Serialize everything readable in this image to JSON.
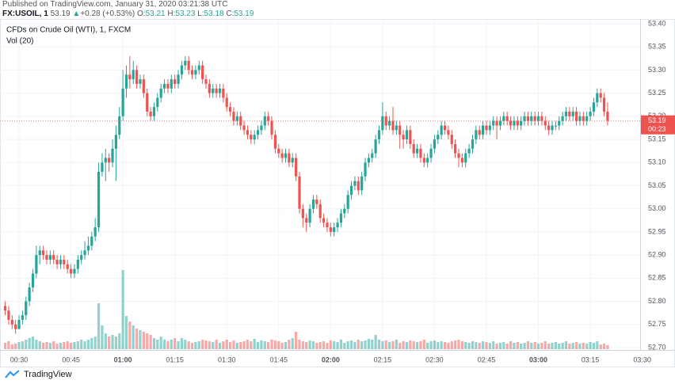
{
  "header": {
    "published": "Published on TradingView.com, January 31, 2020 03:21:38 UTC",
    "symbol": "FX:USOIL, 1",
    "last": 53.19,
    "arrow": "▲",
    "change": "+0.28 (+0.53%)",
    "o_label": "O:",
    "o": 53.21,
    "h_label": "H:",
    "h": 53.23,
    "l_label": "L:",
    "l": 53.18,
    "c_label": "C:",
    "c": 53.19
  },
  "footer": "TradingView",
  "chart_data": {
    "type": "candlestick",
    "title": "CFDs on Crude Oil (WTI), 1, FXCM",
    "volume_title": "Vol (20)",
    "countdown": "00:23",
    "up_color": "#26a69a",
    "down_color": "#ef5350",
    "grid": true,
    "xlim": [
      24.5,
      209.4
    ],
    "xticks": [
      {
        "value": 30,
        "label": "00:30"
      },
      {
        "value": 45,
        "label": "00:45"
      },
      {
        "value": 60,
        "label": "01:00"
      },
      {
        "value": 75,
        "label": "01:15"
      },
      {
        "value": 90,
        "label": "01:30"
      },
      {
        "value": 105,
        "label": "01:45"
      },
      {
        "value": 120,
        "label": "02:00"
      },
      {
        "value": 135,
        "label": "02:15"
      },
      {
        "value": 150,
        "label": "02:30"
      },
      {
        "value": 165,
        "label": "02:45"
      },
      {
        "value": 180,
        "label": "03:00"
      },
      {
        "value": 195,
        "label": "03:15"
      },
      {
        "value": 210,
        "label": "03:30"
      }
    ],
    "ylim": [
      52.7,
      53.4
    ],
    "yticks": [
      {
        "value": 52.7,
        "label": "52.70"
      },
      52.75,
      {
        "value": 52.8,
        "label": "52.80"
      },
      52.85,
      {
        "value": 52.9,
        "label": "52.90"
      },
      52.95,
      {
        "value": 53,
        "label": "53.00"
      },
      53.05,
      {
        "value": 53.1,
        "label": "53.10"
      },
      53.15,
      {
        "value": 53.2,
        "label": "53.20"
      },
      53.25,
      {
        "value": 53.3,
        "label": "53.30"
      },
      53.35,
      {
        "value": 53.4,
        "label": "53.40"
      }
    ],
    "x": [
      26,
      27,
      28,
      29,
      30,
      31,
      32,
      33,
      34,
      35,
      36,
      37,
      38,
      39,
      40,
      41,
      42,
      43,
      44,
      45,
      46,
      47,
      48,
      49,
      50,
      51,
      52,
      53,
      54,
      55,
      56,
      57,
      58,
      59,
      60,
      61,
      62,
      63,
      64,
      65,
      66,
      67,
      68,
      69,
      70,
      71,
      72,
      73,
      74,
      75,
      76,
      77,
      78,
      79,
      80,
      81,
      82,
      83,
      84,
      85,
      86,
      87,
      88,
      89,
      90,
      91,
      92,
      93,
      94,
      95,
      96,
      97,
      98,
      99,
      100,
      101,
      102,
      103,
      104,
      105,
      106,
      107,
      108,
      109,
      110,
      111,
      112,
      113,
      114,
      115,
      116,
      117,
      118,
      119,
      120,
      121,
      122,
      123,
      124,
      125,
      126,
      127,
      128,
      129,
      130,
      131,
      132,
      133,
      134,
      135,
      136,
      137,
      138,
      139,
      140,
      141,
      142,
      143,
      144,
      145,
      146,
      147,
      148,
      149,
      150,
      151,
      152,
      153,
      154,
      155,
      156,
      157,
      158,
      159,
      160,
      161,
      162,
      163,
      164,
      165,
      166,
      167,
      168,
      169,
      170,
      171,
      172,
      173,
      174,
      175,
      176,
      177,
      178,
      179,
      180,
      181,
      182,
      183,
      184,
      185,
      186,
      187,
      188,
      189,
      190,
      191,
      192,
      193,
      194,
      195,
      196,
      197,
      198,
      199,
      200
    ],
    "ohlc": [
      [
        52.79,
        52.8,
        52.77,
        52.78
      ],
      [
        52.78,
        52.79,
        52.75,
        52.76
      ],
      [
        52.76,
        52.77,
        52.74,
        52.75
      ],
      [
        52.75,
        52.76,
        52.73,
        52.74
      ],
      [
        52.74,
        52.77,
        52.74,
        52.76
      ],
      [
        52.76,
        52.78,
        52.75,
        52.77
      ],
      [
        52.77,
        52.81,
        52.76,
        52.8
      ],
      [
        52.8,
        52.84,
        52.79,
        52.83
      ],
      [
        52.83,
        52.87,
        52.82,
        52.86
      ],
      [
        52.86,
        52.92,
        52.85,
        52.9
      ],
      [
        52.9,
        52.92,
        52.88,
        52.91
      ],
      [
        52.91,
        52.92,
        52.89,
        52.9
      ],
      [
        52.9,
        52.91,
        52.88,
        52.89
      ],
      [
        52.89,
        52.91,
        52.88,
        52.9
      ],
      [
        52.9,
        52.91,
        52.88,
        52.89
      ],
      [
        52.89,
        52.9,
        52.87,
        52.88
      ],
      [
        52.88,
        52.9,
        52.87,
        52.89
      ],
      [
        52.89,
        52.9,
        52.87,
        52.88
      ],
      [
        52.88,
        52.89,
        52.86,
        52.87
      ],
      [
        52.87,
        52.88,
        52.85,
        52.86
      ],
      [
        52.86,
        52.88,
        52.85,
        52.87
      ],
      [
        52.87,
        52.9,
        52.86,
        52.89
      ],
      [
        52.89,
        52.91,
        52.88,
        52.9
      ],
      [
        52.9,
        52.93,
        52.89,
        52.91
      ],
      [
        52.91,
        52.94,
        52.9,
        52.92
      ],
      [
        52.92,
        52.95,
        52.91,
        52.94
      ],
      [
        52.94,
        52.98,
        52.93,
        52.96
      ],
      [
        52.96,
        53.1,
        52.95,
        53.08
      ],
      [
        53.08,
        53.12,
        53.07,
        53.1
      ],
      [
        53.1,
        53.13,
        53.06,
        53.11
      ],
      [
        53.11,
        53.12,
        53.08,
        53.1
      ],
      [
        53.1,
        53.15,
        53.09,
        53.13
      ],
      [
        53.13,
        53.18,
        53.06,
        53.16
      ],
      [
        53.16,
        53.22,
        53.15,
        53.2
      ],
      [
        53.2,
        53.3,
        53.19,
        53.26
      ],
      [
        53.26,
        53.31,
        53.24,
        53.29
      ],
      [
        53.29,
        53.33,
        53.26,
        53.28
      ],
      [
        53.28,
        53.32,
        53.27,
        53.3
      ],
      [
        53.3,
        53.31,
        53.26,
        53.27
      ],
      [
        53.27,
        53.29,
        53.26,
        53.28
      ],
      [
        53.28,
        53.29,
        53.24,
        53.25
      ],
      [
        53.25,
        53.26,
        53.2,
        53.21
      ],
      [
        53.21,
        53.22,
        53.19,
        53.2
      ],
      [
        53.2,
        53.23,
        53.19,
        53.22
      ],
      [
        53.22,
        53.25,
        53.21,
        53.24
      ],
      [
        53.24,
        53.27,
        53.23,
        53.26
      ],
      [
        53.26,
        53.28,
        53.25,
        53.27
      ],
      [
        53.27,
        53.28,
        53.25,
        53.26
      ],
      [
        53.26,
        53.29,
        53.25,
        53.28
      ],
      [
        53.28,
        53.29,
        53.26,
        53.27
      ],
      [
        53.27,
        53.3,
        53.26,
        53.29
      ],
      [
        53.29,
        53.32,
        53.28,
        53.31
      ],
      [
        53.31,
        53.33,
        53.3,
        53.32
      ],
      [
        53.32,
        53.33,
        53.29,
        53.3
      ],
      [
        53.3,
        53.31,
        53.28,
        53.29
      ],
      [
        53.29,
        53.31,
        53.28,
        53.3
      ],
      [
        53.3,
        53.32,
        53.29,
        53.31
      ],
      [
        53.31,
        53.32,
        53.27,
        53.28
      ],
      [
        53.28,
        53.29,
        53.26,
        53.27
      ],
      [
        53.27,
        53.28,
        53.24,
        53.25
      ],
      [
        53.25,
        53.27,
        53.24,
        53.26
      ],
      [
        53.26,
        53.27,
        53.24,
        53.25
      ],
      [
        53.25,
        53.27,
        53.24,
        53.26
      ],
      [
        53.26,
        53.27,
        53.23,
        53.24
      ],
      [
        53.24,
        53.25,
        53.21,
        53.22
      ],
      [
        53.22,
        53.23,
        53.2,
        53.21
      ],
      [
        53.21,
        53.22,
        53.18,
        53.19
      ],
      [
        53.19,
        53.21,
        53.18,
        53.2
      ],
      [
        53.2,
        53.21,
        53.17,
        53.18
      ],
      [
        53.18,
        53.19,
        53.16,
        53.17
      ],
      [
        53.17,
        53.18,
        53.15,
        53.16
      ],
      [
        53.16,
        53.17,
        53.14,
        53.15
      ],
      [
        53.15,
        53.17,
        53.14,
        53.16
      ],
      [
        53.16,
        53.18,
        53.15,
        53.17
      ],
      [
        53.17,
        53.19,
        53.16,
        53.18
      ],
      [
        53.18,
        53.21,
        53.17,
        53.2
      ],
      [
        53.2,
        53.21,
        53.18,
        53.19
      ],
      [
        53.19,
        53.2,
        53.15,
        53.16
      ],
      [
        53.16,
        53.17,
        53.12,
        53.13
      ],
      [
        53.13,
        53.14,
        53.11,
        53.12
      ],
      [
        53.12,
        53.13,
        53.1,
        53.11
      ],
      [
        53.11,
        53.13,
        53.1,
        53.12
      ],
      [
        53.12,
        53.13,
        53.09,
        53.1
      ],
      [
        53.1,
        53.12,
        53.09,
        53.11
      ],
      [
        53.11,
        53.12,
        53.06,
        53.07
      ],
      [
        53.07,
        53.08,
        52.99,
        53.0
      ],
      [
        53.0,
        53.01,
        52.96,
        52.98
      ],
      [
        52.98,
        52.99,
        52.95,
        52.97
      ],
      [
        52.97,
        53.01,
        52.96,
        53.0
      ],
      [
        53.0,
        53.03,
        52.99,
        53.02
      ],
      [
        53.02,
        53.03,
        53.0,
        53.01
      ],
      [
        53.01,
        53.02,
        52.97,
        52.98
      ],
      [
        52.98,
        52.99,
        52.96,
        52.97
      ],
      [
        52.97,
        52.98,
        52.95,
        52.96
      ],
      [
        52.96,
        52.97,
        52.94,
        52.95
      ],
      [
        52.95,
        52.97,
        52.94,
        52.96
      ],
      [
        52.96,
        52.98,
        52.95,
        52.97
      ],
      [
        52.97,
        53.0,
        52.96,
        52.99
      ],
      [
        52.99,
        53.01,
        52.98,
        53.0
      ],
      [
        53.0,
        53.04,
        52.99,
        53.03
      ],
      [
        53.03,
        53.06,
        53.02,
        53.05
      ],
      [
        53.05,
        53.07,
        53.04,
        53.06
      ],
      [
        53.06,
        53.07,
        53.03,
        53.04
      ],
      [
        53.04,
        53.08,
        53.03,
        53.07
      ],
      [
        53.07,
        53.11,
        53.06,
        53.1
      ],
      [
        53.1,
        53.12,
        53.09,
        53.11
      ],
      [
        53.11,
        53.13,
        53.1,
        53.12
      ],
      [
        53.12,
        53.16,
        53.11,
        53.15
      ],
      [
        53.15,
        53.18,
        53.14,
        53.17
      ],
      [
        53.17,
        53.23,
        53.16,
        53.2
      ],
      [
        53.2,
        53.21,
        53.17,
        53.18
      ],
      [
        53.18,
        53.2,
        53.17,
        53.19
      ],
      [
        53.19,
        53.22,
        53.16,
        53.17
      ],
      [
        53.17,
        53.19,
        53.16,
        53.18
      ],
      [
        53.18,
        53.19,
        53.13,
        53.16
      ],
      [
        53.16,
        53.17,
        53.13,
        53.15
      ],
      [
        53.15,
        53.18,
        53.14,
        53.17
      ],
      [
        53.17,
        53.18,
        53.13,
        53.14
      ],
      [
        53.14,
        53.15,
        53.11,
        53.12
      ],
      [
        53.12,
        53.14,
        53.11,
        53.13
      ],
      [
        53.13,
        53.14,
        53.1,
        53.11
      ],
      [
        53.11,
        53.12,
        53.09,
        53.1
      ],
      [
        53.1,
        53.12,
        53.09,
        53.11
      ],
      [
        53.11,
        53.14,
        53.1,
        53.13
      ],
      [
        53.13,
        53.16,
        53.12,
        53.15
      ],
      [
        53.15,
        53.17,
        53.14,
        53.16
      ],
      [
        53.16,
        53.19,
        53.15,
        53.18
      ],
      [
        53.18,
        53.19,
        53.16,
        53.17
      ],
      [
        53.17,
        53.18,
        53.15,
        53.16
      ],
      [
        53.16,
        53.17,
        53.13,
        53.14
      ],
      [
        53.14,
        53.15,
        53.11,
        53.12
      ],
      [
        53.12,
        53.13,
        53.09,
        53.11
      ],
      [
        53.11,
        53.12,
        53.09,
        53.1
      ],
      [
        53.1,
        53.13,
        53.09,
        53.12
      ],
      [
        53.12,
        53.14,
        53.11,
        53.13
      ],
      [
        53.13,
        53.16,
        53.12,
        53.15
      ],
      [
        53.15,
        53.18,
        53.14,
        53.17
      ],
      [
        53.17,
        53.18,
        53.15,
        53.16
      ],
      [
        53.16,
        53.19,
        53.15,
        53.18
      ],
      [
        53.18,
        53.19,
        53.16,
        53.17
      ],
      [
        53.17,
        53.19,
        53.16,
        53.18
      ],
      [
        53.18,
        53.2,
        53.17,
        53.19
      ],
      [
        53.19,
        53.2,
        53.15,
        53.18
      ],
      [
        53.18,
        53.2,
        53.17,
        53.19
      ],
      [
        53.19,
        53.21,
        53.18,
        53.2
      ],
      [
        53.2,
        53.21,
        53.18,
        53.19
      ],
      [
        53.19,
        53.2,
        53.17,
        53.18
      ],
      [
        53.18,
        53.2,
        53.17,
        53.19
      ],
      [
        53.19,
        53.2,
        53.17,
        53.18
      ],
      [
        53.18,
        53.2,
        53.17,
        53.19
      ],
      [
        53.19,
        53.21,
        53.18,
        53.2
      ],
      [
        53.2,
        53.21,
        53.18,
        53.19
      ],
      [
        53.19,
        53.21,
        53.18,
        53.2
      ],
      [
        53.2,
        53.21,
        53.18,
        53.19
      ],
      [
        53.19,
        53.21,
        53.18,
        53.2
      ],
      [
        53.2,
        53.21,
        53.18,
        53.19
      ],
      [
        53.19,
        53.2,
        53.17,
        53.18
      ],
      [
        53.18,
        53.19,
        53.16,
        53.17
      ],
      [
        53.17,
        53.19,
        53.16,
        53.18
      ],
      [
        53.18,
        53.19,
        53.17,
        53.18
      ],
      [
        53.18,
        53.2,
        53.17,
        53.19
      ],
      [
        53.19,
        53.21,
        53.18,
        53.2
      ],
      [
        53.2,
        53.22,
        53.19,
        53.21
      ],
      [
        53.21,
        53.22,
        53.19,
        53.2
      ],
      [
        53.2,
        53.22,
        53.19,
        53.21
      ],
      [
        53.21,
        53.22,
        53.18,
        53.19
      ],
      [
        53.19,
        53.21,
        53.18,
        53.2
      ],
      [
        53.2,
        53.21,
        53.18,
        53.19
      ],
      [
        53.19,
        53.21,
        53.18,
        53.2
      ],
      [
        53.2,
        53.22,
        53.19,
        53.21
      ],
      [
        53.21,
        53.24,
        53.2,
        53.23
      ],
      [
        53.23,
        53.26,
        53.22,
        53.25
      ],
      [
        53.25,
        53.26,
        53.23,
        53.24
      ],
      [
        53.24,
        53.25,
        53.2,
        53.21
      ],
      [
        53.21,
        53.23,
        53.18,
        53.19
      ]
    ],
    "volume": [
      8,
      10,
      6,
      7,
      9,
      10,
      12,
      14,
      16,
      12,
      10,
      8,
      9,
      8,
      10,
      7,
      8,
      9,
      10,
      8,
      9,
      10,
      12,
      10,
      12,
      14,
      16,
      58,
      30,
      20,
      16,
      18,
      16,
      20,
      100,
      42,
      35,
      30,
      26,
      24,
      22,
      20,
      18,
      14,
      12,
      16,
      12,
      10,
      12,
      14,
      10,
      14,
      12,
      10,
      8,
      9,
      10,
      12,
      11,
      10,
      9,
      12,
      8,
      10,
      12,
      9,
      11,
      8,
      9,
      10,
      12,
      10,
      13,
      9,
      11,
      10,
      9,
      12,
      11,
      10,
      8,
      9,
      12,
      14,
      22,
      12,
      10,
      9,
      11,
      10,
      8,
      9,
      10,
      8,
      11,
      10,
      9,
      12,
      8,
      10,
      11,
      9,
      12,
      10,
      11,
      13,
      12,
      18,
      12,
      10,
      11,
      9,
      10,
      12,
      8,
      10,
      9,
      11,
      10,
      9,
      10,
      12,
      8,
      10,
      11,
      9,
      10,
      9,
      8,
      10,
      11,
      12,
      10,
      9,
      8,
      10,
      9,
      8,
      10,
      9,
      8,
      10,
      7,
      8,
      9,
      7,
      10,
      8,
      9,
      7,
      8,
      10,
      8,
      9,
      7,
      8,
      10,
      7,
      8,
      9,
      7,
      8,
      10,
      7,
      8,
      9,
      7,
      8,
      7,
      9,
      8,
      10,
      6,
      7,
      5
    ]
  }
}
